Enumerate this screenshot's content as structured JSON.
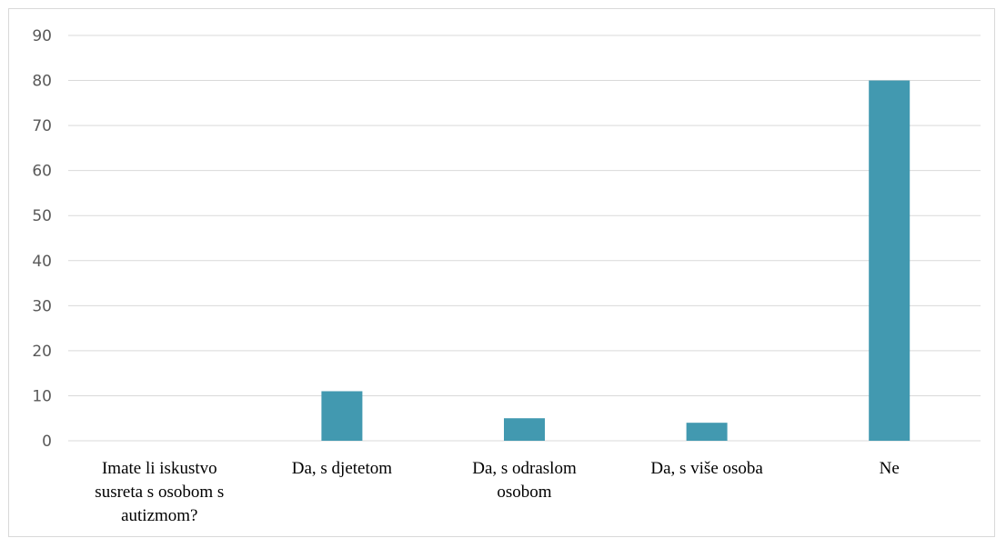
{
  "chart_data": {
    "type": "bar",
    "categories": [
      "Imate li iskustvo susreta s osobom s autizmom?",
      "Da, s djetetom",
      "Da, s odraslom osobom",
      "Da, s više osoba",
      "Ne"
    ],
    "category_lines": [
      [
        "Imate li iskustvo",
        "susreta s osobom s",
        "autizmom?"
      ],
      [
        "Da, s djetetom"
      ],
      [
        "Da, s odraslom",
        "osobom"
      ],
      [
        "Da, s više osoba"
      ],
      [
        "Ne"
      ]
    ],
    "values": [
      null,
      11,
      5,
      4,
      80
    ],
    "ylim": [
      0,
      90
    ],
    "yticks": [
      0,
      10,
      20,
      30,
      40,
      50,
      60,
      70,
      80,
      90
    ],
    "grid": true,
    "legend": "none",
    "title": "",
    "xlabel": "",
    "ylabel": "",
    "colors": {
      "bar": "#4299b0",
      "grid": "#d9d9d9",
      "tick_text": "#595959"
    }
  }
}
